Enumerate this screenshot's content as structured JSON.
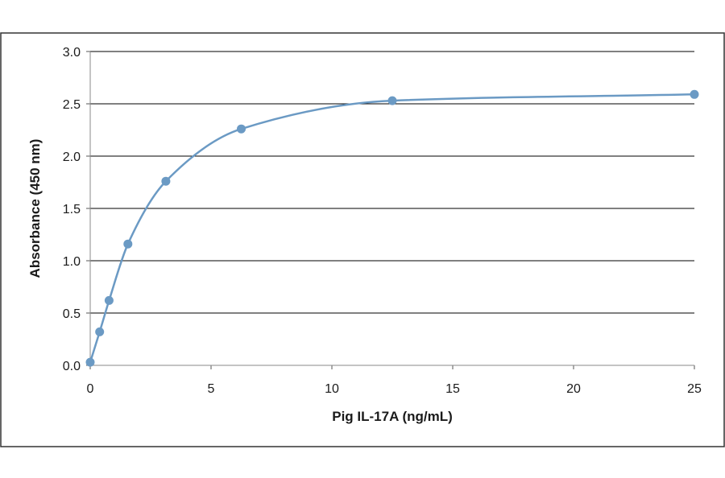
{
  "chart_data": {
    "type": "scatter",
    "title": "",
    "xlabel": "Pig IL-17A  (ng/mL)",
    "ylabel": "Absorbance  (450  nm)",
    "xlim": [
      0,
      25
    ],
    "ylim": [
      0,
      3.0
    ],
    "xticks": [
      "0",
      "5",
      "10",
      "15",
      "20",
      "25"
    ],
    "yticks": [
      "0.0",
      "0.5",
      "1.0",
      "1.5",
      "2.0",
      "2.5",
      "3.0"
    ],
    "grid": "horizontal",
    "legend": "none",
    "series": [
      {
        "x": [
          0,
          0.39,
          0.78,
          1.56,
          3.13,
          6.25,
          12.5,
          25
        ],
        "y": [
          0.03,
          0.32,
          0.62,
          1.16,
          1.76,
          2.26,
          2.53,
          2.59
        ]
      }
    ],
    "colors": {
      "series": "#6b9ac4",
      "marker": "#6b9ac4",
      "grid": "#000000",
      "frame": "#333333"
    }
  }
}
